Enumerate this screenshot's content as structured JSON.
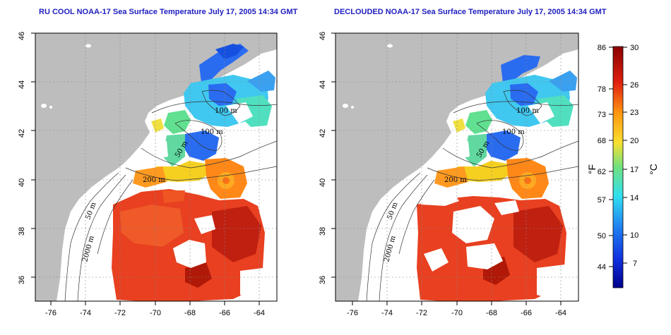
{
  "titles": {
    "left": "RU COOL NOAA-17 Sea Surface Temperature July 17, 2005 14:34 GMT",
    "right": "DECLOUDED NOAA-17 Sea Surface Temperature July 17, 2005 14:34 GMT"
  },
  "axes": {
    "lat_ticks": [
      "36",
      "38",
      "40",
      "42",
      "44",
      "46"
    ],
    "lon_ticks": [
      "-76",
      "-74",
      "-72",
      "-70",
      "-68",
      "-66",
      "-64"
    ]
  },
  "contour_labels": {
    "c100": "100 m",
    "c50": "50 m",
    "c200": "200 m",
    "c2000": "2000 m"
  },
  "colorbar": {
    "fahrenheit_label": "°F",
    "celsius_label": "°C",
    "fahrenheit_ticks": [
      "86",
      "78",
      "73",
      "68",
      "62",
      "57",
      "50",
      "44"
    ],
    "celsius_ticks": [
      "30",
      "26",
      "23",
      "20",
      "17",
      "14",
      "10",
      "7"
    ],
    "colors": {
      "dark_red": "#8b0000",
      "red": "#e02010",
      "orange": "#ff9a10",
      "yellow": "#f8e030",
      "green": "#70e080",
      "cyan": "#30e0f0",
      "blue": "#2060f0",
      "dark_blue": "#00008b"
    }
  },
  "map_colors": {
    "land": "#bdbdbd",
    "cloud": "#ffffff"
  }
}
